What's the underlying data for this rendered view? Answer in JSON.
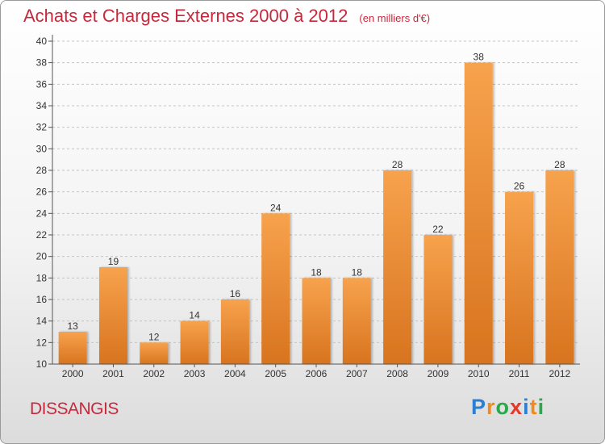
{
  "chart_data": {
    "type": "bar",
    "title": "Achats et Charges Externes 2000 à 2012",
    "subtitle": "(en milliers d'€)",
    "categories": [
      "2000",
      "2001",
      "2002",
      "2003",
      "2004",
      "2005",
      "2006",
      "2007",
      "2008",
      "2009",
      "2010",
      "2011",
      "2012"
    ],
    "values": [
      13,
      19,
      12,
      14,
      16,
      24,
      18,
      18,
      28,
      22,
      38,
      26,
      28
    ],
    "xlabel": "",
    "ylabel": "",
    "ylim": [
      10,
      40
    ],
    "yticks": [
      10,
      12,
      14,
      16,
      18,
      20,
      22,
      24,
      26,
      28,
      30,
      32,
      34,
      36,
      38,
      40
    ],
    "grid": "horizontal dashed",
    "legend": "none",
    "colors": {
      "bar_light": "#f7a24d",
      "bar_dark": "#d8741f",
      "title": "#c8283c"
    }
  },
  "footer": {
    "place": "DISSANGIS",
    "logo": {
      "letters": [
        "P",
        "r",
        "o",
        "x",
        "i",
        "t",
        "i"
      ],
      "colors": [
        "#2a7fd4",
        "#f08a1c",
        "#2aa84a",
        "#e53a2a",
        "#2a7fd4",
        "#f08a1c",
        "#2aa84a"
      ]
    }
  }
}
